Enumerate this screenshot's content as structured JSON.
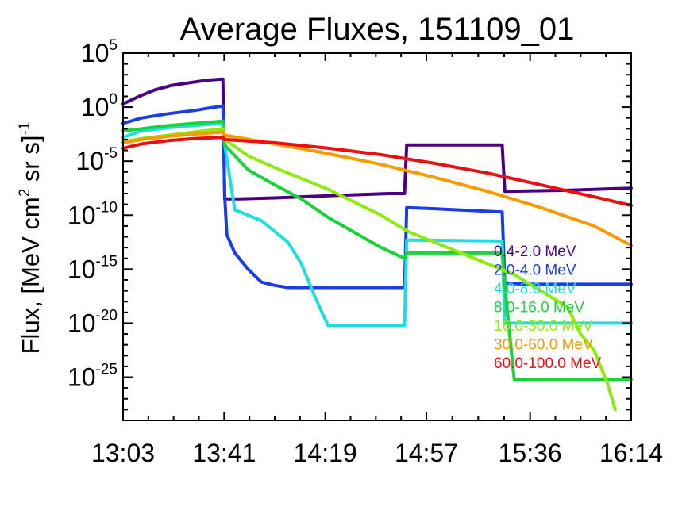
{
  "chart_data": {
    "type": "line",
    "title": "Average Fluxes, 151109_01",
    "xlabel": "",
    "ylabel": "Flux, [MeV cm",
    "ylabel_sup1": "2",
    "ylabel_mid": " sr s]",
    "ylabel_sup2": "-1",
    "x_ticks": [
      "13:03",
      "13:41",
      "14:19",
      "14:57",
      "15:36",
      "16:14"
    ],
    "x_tick_minutes": [
      783,
      821,
      859,
      897,
      936,
      974
    ],
    "xlim_minutes": [
      783,
      974
    ],
    "y_scale": "log",
    "ylim_exponent": [
      -29,
      5
    ],
    "y_ticks": [
      {
        "base": "10",
        "exp": "5",
        "value": 5
      },
      {
        "base": "10",
        "exp": "0",
        "value": 0
      },
      {
        "base": "10",
        "exp": "-5",
        "value": -5
      },
      {
        "base": "10",
        "exp": "-10",
        "value": -10
      },
      {
        "base": "10",
        "exp": "-15",
        "value": -15
      },
      {
        "base": "10",
        "exp": "-20",
        "value": -20
      },
      {
        "base": "10",
        "exp": "-25",
        "value": -25
      }
    ],
    "legend_position": "right",
    "series": [
      {
        "name": "0.4-2.0 MeV",
        "color": "#4b0082",
        "x": [
          783,
          789,
          795,
          801,
          809,
          815,
          820.5,
          821.2,
          827,
          840,
          860,
          883,
          888.8,
          889.6,
          900,
          920,
          925.5,
          926.5,
          950,
          974
        ],
        "log10_y": [
          0.3,
          1,
          1.6,
          2,
          2.3,
          2.5,
          2.6,
          -8.5,
          -8.5,
          -8.4,
          -8.2,
          -8.0,
          -8.0,
          -3.5,
          -3.5,
          -3.5,
          -3.5,
          -7.8,
          -7.7,
          -7.5
        ]
      },
      {
        "name": "2.0-4.0 MeV",
        "color": "#1a3ee6",
        "x": [
          783,
          790,
          800,
          810,
          815,
          820.5,
          821.2,
          822,
          825,
          830,
          835,
          840,
          845,
          860,
          883,
          888.8,
          889.6,
          900,
          925.5,
          926.5,
          935,
          974
        ],
        "log10_y": [
          -1.5,
          -1,
          -0.6,
          -0.3,
          -0.1,
          0.1,
          -8.2,
          -11.8,
          -13.5,
          -15,
          -16.2,
          -16.5,
          -16.7,
          -16.7,
          -16.7,
          -16.7,
          -9.3,
          -9.4,
          -9.7,
          -16.3,
          -16.4,
          -16.4
        ]
      },
      {
        "name": "4.0-8.0 MeV",
        "color": "#22dde0",
        "x": [
          783,
          790,
          800,
          810,
          820.5,
          821.2,
          825,
          835,
          845,
          850,
          855,
          860,
          883,
          888.8,
          889.6,
          925.5,
          926.5,
          974
        ],
        "log10_y": [
          -2.8,
          -2.2,
          -1.9,
          -1.7,
          -1.5,
          -3.5,
          -9.5,
          -10.5,
          -12.5,
          -14.5,
          -17.5,
          -20.2,
          -20.2,
          -20.2,
          -12.3,
          -12.4,
          -20.0,
          -20.0
        ]
      },
      {
        "name": "8.0-16.0 MeV",
        "color": "#1ad33a",
        "x": [
          783,
          790,
          800,
          810,
          820.5,
          821.2,
          830,
          840,
          850,
          860,
          870,
          880,
          888.8,
          889.6,
          925.5,
          926.5,
          930,
          974
        ],
        "log10_y": [
          -2.2,
          -2,
          -1.7,
          -1.5,
          -1.3,
          -3.5,
          -5.8,
          -7.2,
          -8.5,
          -10.2,
          -11.6,
          -13,
          -14,
          -13.5,
          -13.5,
          -16.5,
          -25.2,
          -25.2
        ]
      },
      {
        "name": "16.0-30.0 MeV",
        "color": "#8eea10",
        "x": [
          783,
          790,
          800,
          810,
          820.5,
          821.2,
          830,
          840,
          850,
          860,
          870,
          880,
          890,
          900,
          910,
          920,
          930,
          940,
          950,
          955,
          960,
          965,
          968
        ],
        "log10_y": [
          -3.2,
          -2.9,
          -2.6,
          -2.3,
          -2,
          -3,
          -4.5,
          -5.6,
          -6.6,
          -7.6,
          -8.8,
          -10,
          -11.5,
          -12.5,
          -13.5,
          -14.5,
          -15.5,
          -17,
          -18.5,
          -21,
          -22.5,
          -25.5,
          -28
        ]
      },
      {
        "name": "30.0-60.0 MeV",
        "color": "#f59b00",
        "x": [
          783,
          790,
          800,
          810,
          820.5,
          821.2,
          840,
          860,
          880,
          900,
          920,
          940,
          960,
          974
        ],
        "log10_y": [
          -3.3,
          -3,
          -2.7,
          -2.5,
          -2.3,
          -2.6,
          -3.4,
          -4.3,
          -5.3,
          -6.5,
          -7.8,
          -9.3,
          -11,
          -12.8
        ]
      },
      {
        "name": "60.0-100.0 MeV",
        "color": "#e81010",
        "x": [
          783,
          790,
          800,
          810,
          820.5,
          821.2,
          840,
          860,
          880,
          900,
          920,
          940,
          960,
          974
        ],
        "log10_y": [
          -3.8,
          -3.4,
          -3.1,
          -2.9,
          -2.8,
          -3.0,
          -3.3,
          -3.8,
          -4.4,
          -5.2,
          -6.1,
          -7.2,
          -8.3,
          -9.1
        ]
      }
    ]
  }
}
